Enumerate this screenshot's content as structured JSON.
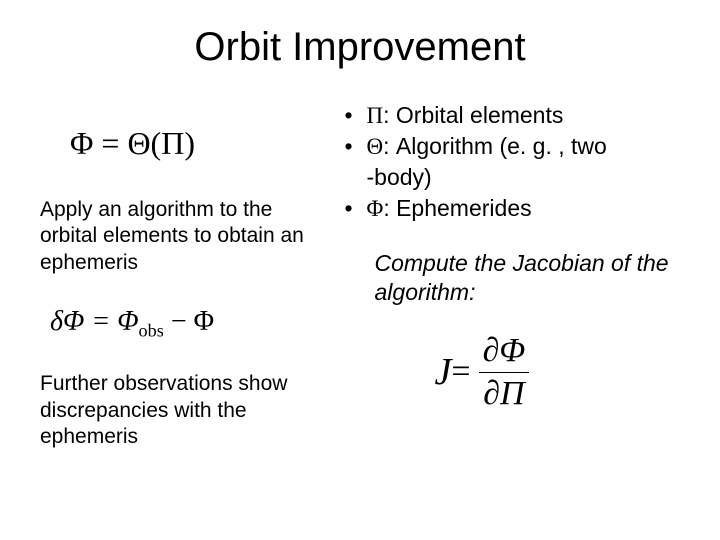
{
  "title": "Orbit Improvement",
  "left": {
    "eq1": "Φ = Θ(Π)",
    "text1": "Apply an algorithm to the orbital elements to obtain an ephemeris",
    "eq2_prefix": "δΦ = Φ",
    "eq2_sub": "obs",
    "eq2_suffix": " − Φ",
    "text2": "Further observations show discrepancies with the ephemeris"
  },
  "right": {
    "bullets": {
      "b1_sym": "Π",
      "b1_txt": ": Orbital elements",
      "b2_sym": "Θ",
      "b2_txt": ": Algorithm (e. g. , two",
      "b2_cont": "-body)",
      "b3_sym": "Φ",
      "b3_txt": ": Ephemerides"
    },
    "jacobian_text": "Compute the Jacobian of the algorithm:",
    "eq3": {
      "lhs": "J",
      "eq": " = ",
      "num": "∂Φ",
      "den": "∂Π"
    }
  }
}
